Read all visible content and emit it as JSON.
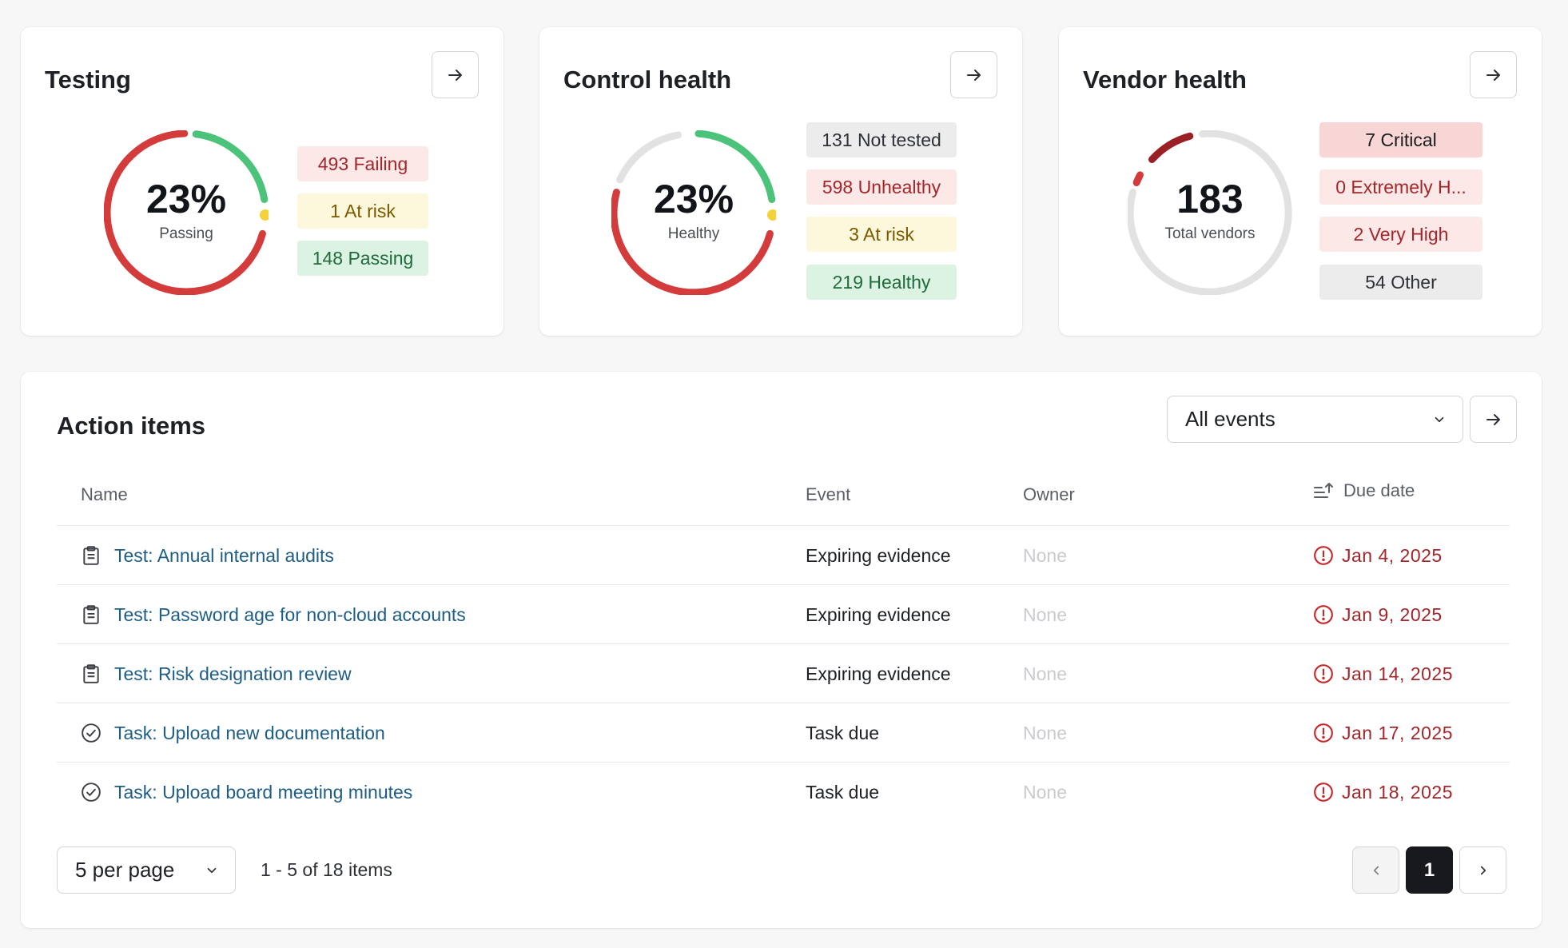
{
  "colors": {
    "red": "#d43c3c",
    "green": "#4cc37a",
    "yellow": "#f5d13b",
    "track": "#e2e2e2",
    "dark_red": "#a3262a"
  },
  "cards": {
    "testing": {
      "title": "Testing",
      "center_value": "23%",
      "center_label": "Passing",
      "pills": [
        "493 Failing",
        "1 At risk",
        "148 Passing"
      ]
    },
    "control_health": {
      "title": "Control health",
      "center_value": "23%",
      "center_label": "Healthy",
      "pills": [
        "131 Not tested",
        "598 Unhealthy",
        "3 At risk",
        "219 Healthy"
      ]
    },
    "vendor_health": {
      "title": "Vendor health",
      "center_value": "183",
      "center_label": "Total vendors",
      "pills": [
        "7 Critical",
        "0 Extremely H...",
        "2 Very High",
        "54 Other"
      ]
    }
  },
  "action_items": {
    "title": "Action items",
    "filter_value": "All events",
    "columns": {
      "name": "Name",
      "event": "Event",
      "owner": "Owner",
      "due_date": "Due date"
    },
    "rows": [
      {
        "icon": "clipboard-icon",
        "name": "Test: Annual internal audits",
        "event": "Expiring evidence",
        "owner": "None",
        "due": "Jan 4, 2025"
      },
      {
        "icon": "clipboard-icon",
        "name": "Test: Password age for non-cloud accounts",
        "event": "Expiring evidence",
        "owner": "None",
        "due": "Jan 9, 2025"
      },
      {
        "icon": "clipboard-icon",
        "name": "Test: Risk designation review",
        "event": "Expiring evidence",
        "owner": "None",
        "due": "Jan 14, 2025"
      },
      {
        "icon": "check-circle-icon",
        "name": "Task: Upload new documentation",
        "event": "Task due",
        "owner": "None",
        "due": "Jan 17, 2025"
      },
      {
        "icon": "check-circle-icon",
        "name": "Task: Upload board meeting minutes",
        "event": "Task due",
        "owner": "None",
        "due": "Jan 18, 2025"
      }
    ],
    "pagination": {
      "per_page": "5 per page",
      "range": "1 - 5 of 18 items",
      "current_page": "1"
    }
  }
}
